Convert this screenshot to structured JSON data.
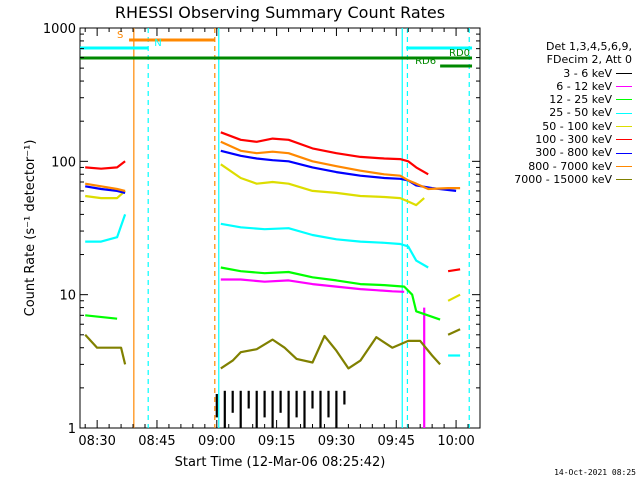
{
  "title": "RHESSI Observing Summary Count Rates",
  "timestamp": "14-Oct-2021 08:25",
  "legend_header": [
    "Det 1,3,4,5,6,9,",
    "FDecim 2, Att 0"
  ],
  "chart_data": {
    "type": "line",
    "title": "RHESSI Observing Summary Count Rates",
    "xlabel": "Start Time (12-Mar-06 08:25:42)",
    "ylabel": "Count Rate (s⁻¹ detector⁻¹)",
    "x_ticks": [
      "08:30",
      "08:45",
      "09:00",
      "09:15",
      "09:30",
      "09:45",
      "10:00"
    ],
    "x_tick_minutes": [
      30,
      45,
      60,
      75,
      90,
      105,
      120
    ],
    "xlim_minutes_after_0800": [
      25.7,
      126
    ],
    "yscale": "log",
    "ylim": [
      1,
      1000
    ],
    "y_ticks": [
      1,
      10,
      100,
      1000
    ],
    "grid": false,
    "legend_position": "top-right",
    "series": [
      {
        "name": "3 - 6 keV",
        "color": "#000000",
        "segments": [
          [
            [
              60,
              1.2
            ],
            [
              60,
              1.8
            ]
          ],
          [
            [
              62,
              1.0
            ],
            [
              62,
              1.9
            ]
          ],
          [
            [
              64,
              1.3
            ],
            [
              64,
              1.9
            ]
          ],
          [
            [
              66,
              1.0
            ],
            [
              66,
              1.9
            ]
          ],
          [
            [
              68,
              1.4
            ],
            [
              68,
              1.9
            ]
          ],
          [
            [
              70,
              1.0
            ],
            [
              70,
              1.9
            ]
          ],
          [
            [
              72,
              1.2
            ],
            [
              72,
              1.9
            ]
          ],
          [
            [
              74,
              1.0
            ],
            [
              74,
              1.9
            ]
          ],
          [
            [
              76,
              1.3
            ],
            [
              76,
              1.9
            ]
          ],
          [
            [
              78,
              1.0
            ],
            [
              78,
              1.9
            ]
          ],
          [
            [
              80,
              1.2
            ],
            [
              80,
              1.9
            ]
          ],
          [
            [
              82,
              1.0
            ],
            [
              82,
              1.9
            ]
          ],
          [
            [
              84,
              1.4
            ],
            [
              84,
              1.9
            ]
          ],
          [
            [
              86,
              1.0
            ],
            [
              86,
              1.9
            ]
          ],
          [
            [
              88,
              1.2
            ],
            [
              88,
              1.9
            ]
          ],
          [
            [
              90,
              1.0
            ],
            [
              90,
              1.9
            ]
          ],
          [
            [
              92,
              1.5
            ],
            [
              92,
              1.9
            ]
          ]
        ]
      },
      {
        "name": "6 - 12 keV",
        "color": "#ff00ff",
        "segments": [
          [
            [
              61,
              13
            ],
            [
              66,
              13
            ],
            [
              72,
              12.5
            ],
            [
              78,
              12.8
            ],
            [
              84,
              12
            ],
            [
              90,
              11.5
            ],
            [
              96,
              11
            ],
            [
              100,
              10.8
            ],
            [
              104,
              10.6
            ],
            [
              107,
              10.5
            ]
          ],
          [
            [
              112,
              1
            ],
            [
              112,
              8
            ]
          ]
        ]
      },
      {
        "name": "12 - 25 keV",
        "color": "#00ff00",
        "segments": [
          [
            [
              27,
              7
            ],
            [
              35,
              6.6
            ]
          ],
          [
            [
              61,
              16
            ],
            [
              66,
              15
            ],
            [
              72,
              14.5
            ],
            [
              78,
              14.8
            ],
            [
              84,
              13.5
            ],
            [
              90,
              12.8
            ],
            [
              96,
              12
            ],
            [
              102,
              11.8
            ],
            [
              107,
              11.5
            ],
            [
              109,
              10
            ],
            [
              110,
              7.5
            ],
            [
              116,
              6.5
            ]
          ]
        ]
      },
      {
        "name": "25 - 50 keV",
        "color": "#00ffff",
        "segments": [
          [
            [
              27,
              25
            ],
            [
              31,
              25
            ],
            [
              35,
              27
            ],
            [
              37,
              40
            ]
          ],
          [
            [
              61,
              34
            ],
            [
              66,
              32
            ],
            [
              72,
              31
            ],
            [
              78,
              31.5
            ],
            [
              84,
              28
            ],
            [
              90,
              26
            ],
            [
              96,
              25
            ],
            [
              102,
              24.5
            ],
            [
              106,
              24
            ],
            [
              108,
              23
            ],
            [
              110,
              18
            ],
            [
              113,
              16
            ]
          ],
          [
            [
              118,
              3.5
            ],
            [
              121,
              3.5
            ]
          ]
        ]
      },
      {
        "name": "50 - 100 keV",
        "color": "#dddd00",
        "segments": [
          [
            [
              27,
              55
            ],
            [
              31,
              53
            ],
            [
              35,
              53
            ],
            [
              37,
              60
            ]
          ],
          [
            [
              61,
              95
            ],
            [
              66,
              75
            ],
            [
              70,
              68
            ],
            [
              74,
              70
            ],
            [
              78,
              68
            ],
            [
              84,
              60
            ],
            [
              90,
              58
            ],
            [
              96,
              55
            ],
            [
              102,
              54
            ],
            [
              106,
              53
            ],
            [
              108,
              50
            ],
            [
              110,
              47
            ],
            [
              112,
              53
            ]
          ],
          [
            [
              118,
              9
            ],
            [
              121,
              10
            ]
          ]
        ]
      },
      {
        "name": "100 - 300 keV",
        "color": "#ff0000",
        "segments": [
          [
            [
              27,
              90
            ],
            [
              31,
              88
            ],
            [
              35,
              90
            ],
            [
              37,
              100
            ]
          ],
          [
            [
              61,
              165
            ],
            [
              66,
              145
            ],
            [
              70,
              140
            ],
            [
              74,
              148
            ],
            [
              78,
              145
            ],
            [
              84,
              125
            ],
            [
              90,
              115
            ],
            [
              96,
              108
            ],
            [
              102,
              105
            ],
            [
              106,
              104
            ],
            [
              108,
              100
            ],
            [
              110,
              90
            ],
            [
              113,
              80
            ]
          ],
          [
            [
              118,
              15
            ],
            [
              121,
              15.5
            ]
          ]
        ]
      },
      {
        "name": "300 - 800 keV",
        "color": "#0000ff",
        "segments": [
          [
            [
              27,
              65
            ],
            [
              31,
              62
            ],
            [
              35,
              60
            ],
            [
              37,
              58
            ]
          ],
          [
            [
              61,
              120
            ],
            [
              66,
              110
            ],
            [
              70,
              105
            ],
            [
              74,
              102
            ],
            [
              78,
              100
            ],
            [
              84,
              90
            ],
            [
              90,
              83
            ],
            [
              96,
              78
            ],
            [
              102,
              75
            ],
            [
              106,
              74
            ],
            [
              108,
              72
            ],
            [
              110,
              66
            ],
            [
              114,
              63
            ],
            [
              120,
              60
            ]
          ]
        ]
      },
      {
        "name": "800 - 7000 keV",
        "color": "#ff8800",
        "segments": [
          [
            [
              27,
              68
            ],
            [
              31,
              65
            ],
            [
              35,
              62
            ],
            [
              37,
              60
            ]
          ],
          [
            [
              61,
              140
            ],
            [
              66,
              120
            ],
            [
              70,
              115
            ],
            [
              74,
              118
            ],
            [
              78,
              115
            ],
            [
              84,
              100
            ],
            [
              90,
              92
            ],
            [
              96,
              85
            ],
            [
              102,
              80
            ],
            [
              106,
              78
            ],
            [
              108,
              72
            ],
            [
              110,
              68
            ],
            [
              113,
              62
            ],
            [
              118,
              63
            ],
            [
              121,
              63
            ]
          ]
        ]
      },
      {
        "name": "7000 - 15000 keV",
        "color": "#808000",
        "segments": [
          [
            [
              27,
              5
            ],
            [
              30,
              4
            ],
            [
              33,
              4
            ],
            [
              36,
              4
            ],
            [
              37,
              3
            ]
          ],
          [
            [
              61,
              2.8
            ],
            [
              64,
              3.2
            ],
            [
              66,
              3.7
            ],
            [
              70,
              3.9
            ],
            [
              74,
              4.6
            ],
            [
              77,
              4.0
            ],
            [
              80,
              3.3
            ],
            [
              84,
              3.1
            ],
            [
              87,
              4.9
            ],
            [
              90,
              3.8
            ],
            [
              93,
              2.8
            ],
            [
              96,
              3.2
            ],
            [
              100,
              4.8
            ],
            [
              104,
              4.0
            ],
            [
              108,
              4.5
            ],
            [
              111,
              4.5
            ],
            [
              114,
              3.5
            ],
            [
              116,
              3.0
            ]
          ],
          [
            [
              118,
              5.0
            ],
            [
              121,
              5.5
            ]
          ]
        ]
      }
    ],
    "vertical_markers": [
      {
        "minute": 39.2,
        "color": "#ff8800",
        "style": "solid"
      },
      {
        "minute": 42.8,
        "color": "#00ffff",
        "style": "dashed"
      },
      {
        "minute": 59.5,
        "color": "#ff8800",
        "style": "dashed"
      },
      {
        "minute": 60.5,
        "color": "#00ffff",
        "style": "solid"
      },
      {
        "minute": 106.5,
        "color": "#00ffff",
        "style": "solid"
      },
      {
        "minute": 107.8,
        "color": "#00ffff",
        "style": "dashed"
      },
      {
        "minute": 123.3,
        "color": "#00ffff",
        "style": "dashed"
      }
    ],
    "flag_bars": [
      {
        "label": "S",
        "color": "#ff8800",
        "x_start": 38,
        "x_end": 59.5,
        "level": 0
      },
      {
        "label": "N",
        "color": "#00ffff",
        "x_start": 25.7,
        "x_end": 42.8,
        "level": 1
      },
      {
        "label": "N",
        "color": "#00ffff",
        "x_start": 107.5,
        "x_end": 124,
        "level": 1
      },
      {
        "label": "RD0",
        "color": "#008800",
        "x_start": 25.7,
        "x_end": 124,
        "level": 2
      },
      {
        "label": "RD6",
        "color": "#008800",
        "x_start": 116,
        "x_end": 124,
        "level": 3
      }
    ]
  }
}
